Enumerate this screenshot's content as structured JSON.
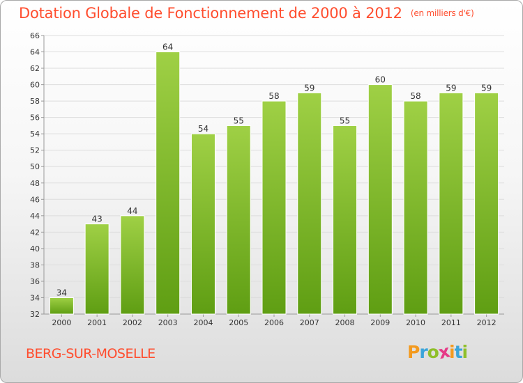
{
  "header": {
    "title": "Dotation Globale de Fonctionnement de 2000 à 2012",
    "subtitle": "(en milliers d'€)"
  },
  "footer": {
    "place": "BERG-SUR-MOSELLE",
    "logo_letters": [
      "P",
      "r",
      "o",
      "x",
      "i",
      "t",
      "i"
    ],
    "logo_colors": [
      "#f39a1f",
      "#3aa4d9",
      "#8fbf2a",
      "#e63a87",
      "#f39a1f",
      "#3aa4d9",
      "#8fbf2a"
    ]
  },
  "chart_data": {
    "type": "bar",
    "title": "Dotation Globale de Fonctionnement de 2000 à 2012",
    "subtitle": "(en milliers d'€)",
    "xlabel": "",
    "ylabel": "",
    "categories": [
      "2000",
      "2001",
      "2002",
      "2003",
      "2004",
      "2005",
      "2006",
      "2007",
      "2008",
      "2009",
      "2010",
      "2011",
      "2012"
    ],
    "values": [
      34,
      43,
      44,
      64,
      54,
      55,
      58,
      59,
      55,
      60,
      58,
      59,
      59
    ],
    "ylim": [
      32,
      66
    ],
    "yticks": [
      32,
      34,
      36,
      38,
      40,
      42,
      44,
      46,
      48,
      50,
      52,
      54,
      56,
      58,
      60,
      62,
      64,
      66
    ],
    "grid": true,
    "legend": "none",
    "bar_color_top": "#9fd045",
    "bar_color_bottom": "#5f9e13"
  }
}
